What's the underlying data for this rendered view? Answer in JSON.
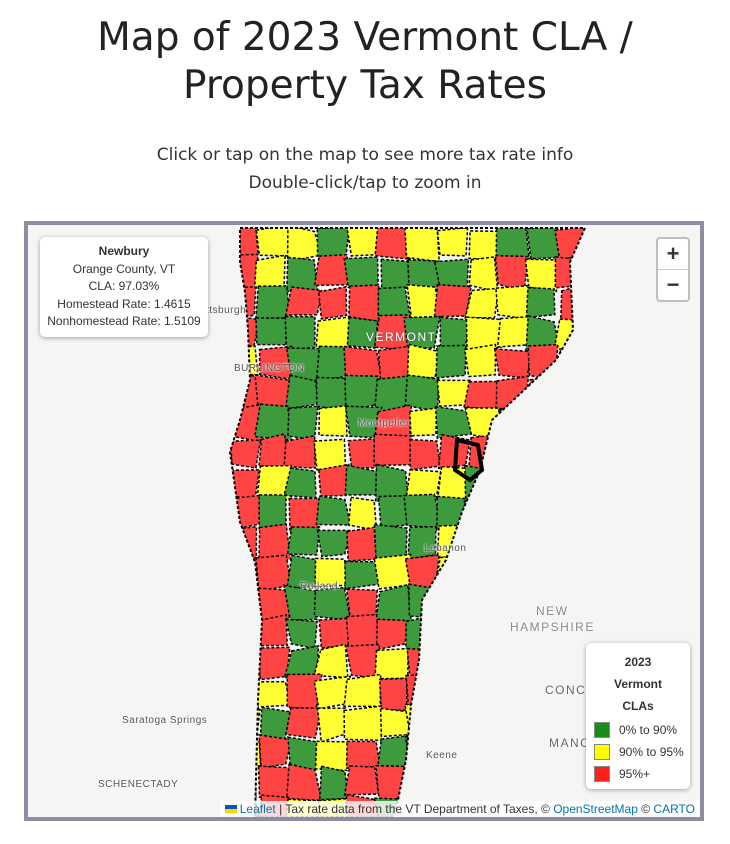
{
  "title_line1": "Map of 2023 Vermont CLA /",
  "title_line2": "Property Tax Rates",
  "instructions": [
    "Click or tap on the map to see more tax rate info",
    "Double-click/tap to zoom in"
  ],
  "info_box": {
    "town": "Newbury",
    "county": "Orange County, VT",
    "cla": "CLA: 97.03%",
    "homestead": "Homestead Rate: 1.4615",
    "nonhomestead": "Nonhomestead Rate: 1.5109"
  },
  "zoom": {
    "in": "+",
    "out": "−"
  },
  "map_labels": {
    "plattsburgh": "ttsburgh",
    "burlington": "BURLINGTON",
    "vermont": "VERMONT",
    "montpelier": "Montpelier",
    "rutland": "Rutland",
    "lebanon": "Lebanon",
    "new_hampshire_1": "NEW",
    "new_hampshire_2": "HAMPSHIRE",
    "concord": "CONCO",
    "manchester": "MANC",
    "keene": "Keene",
    "saratoga": "Saratoga Springs",
    "schenectady": "SCHENECTADY"
  },
  "legend": {
    "title": [
      "2023",
      "Vermont",
      "CLAs"
    ],
    "items": [
      {
        "label": "0% to 90%",
        "color": "#1a8c1a"
      },
      {
        "label": "90% to 95%",
        "color": "#ffff00"
      },
      {
        "label": "95%+",
        "color": "#ff2020"
      }
    ]
  },
  "fill_colors": {
    "low": "#3d9a3d",
    "mid": "#ffff33",
    "high": "#ff4444"
  },
  "selected_town": "Newbury",
  "attribution": {
    "leaflet": "Leaflet",
    "text": " | Tax rate data from the VT Department of Taxes, © ",
    "osm": "OpenStreetMap",
    "sep": " © ",
    "carto": "CARTO"
  }
}
